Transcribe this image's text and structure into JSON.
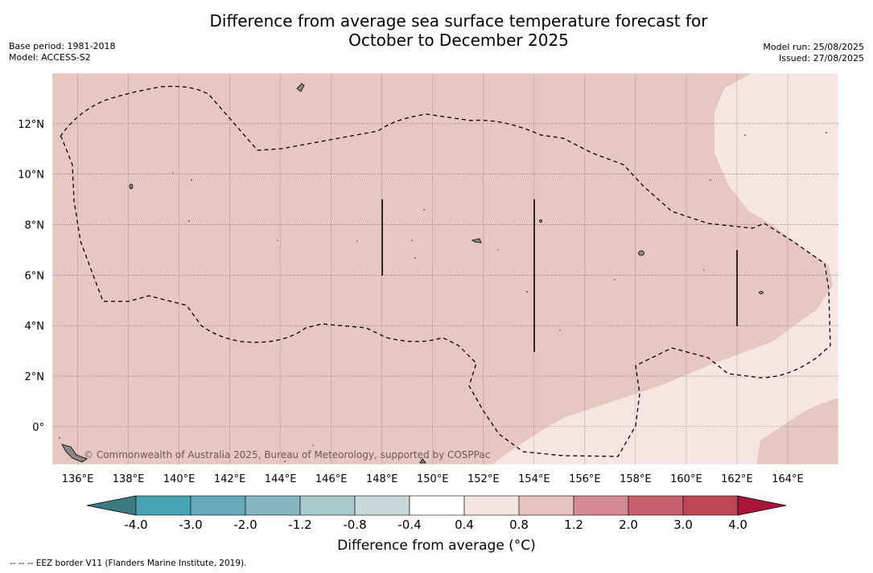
{
  "title_line1": "Difference from average sea surface temperature forecast for",
  "title_line2": "October to December 2025",
  "base_period": "Base period: 1981-2018",
  "model": "Model: ACCESS-S2",
  "model_run": "Model run: 25/08/2025",
  "issued": "Issued: 27/08/2025",
  "watermark": "© Commonwealth of Australia 2025, Bureau of Meteorology, supported by COSPPac",
  "footer_legend": "--  --  -- EEZ border V11 (Flanders Marine Institute, 2019).",
  "colorbar": {
    "title": "Difference from average (°C)",
    "ticks": [
      "-4.0",
      "-3.0",
      "-2.0",
      "-1.2",
      "-0.8",
      "-0.4",
      "0.4",
      "0.8",
      "1.2",
      "2.0",
      "3.0",
      "4.0"
    ],
    "colors": [
      "#3d7b83",
      "#4aa3b3",
      "#67a8b9",
      "#88b6c0",
      "#a9c8cb",
      "#c9d8d8",
      "#ffffff",
      "#f5e5e2",
      "#e8c4bf",
      "#d48b93",
      "#c9606e",
      "#bd4757",
      "#a8163a"
    ]
  },
  "map": {
    "lon_labels": [
      "136°E",
      "138°E",
      "140°E",
      "142°E",
      "144°E",
      "146°E",
      "148°E",
      "150°E",
      "152°E",
      "154°E",
      "156°E",
      "158°E",
      "160°E",
      "162°E",
      "164°E"
    ],
    "lon_values": [
      136,
      138,
      140,
      142,
      144,
      146,
      148,
      150,
      152,
      154,
      156,
      158,
      160,
      162,
      164
    ],
    "lat_labels": [
      "12°N",
      "10°N",
      "8°N",
      "6°N",
      "4°N",
      "2°N",
      "0°"
    ],
    "lat_values": [
      12,
      10,
      8,
      6,
      4,
      2,
      0
    ],
    "lon_range": [
      135,
      166
    ],
    "lat_range": [
      -1.5,
      14
    ],
    "region_colors": {
      "anomaly_0.8_to_1.2": "#e8c6c1",
      "anomaly_0.4_to_0.8": "#f5e6e3"
    }
  }
}
